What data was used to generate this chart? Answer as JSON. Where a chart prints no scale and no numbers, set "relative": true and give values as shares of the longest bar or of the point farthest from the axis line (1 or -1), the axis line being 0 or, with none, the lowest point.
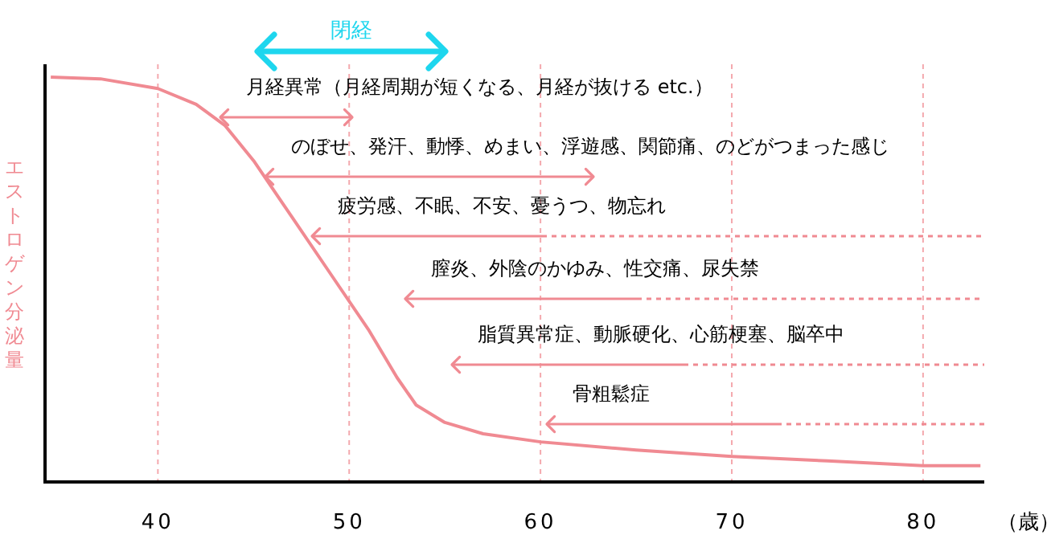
{
  "chart_data": {
    "type": "line",
    "relative": true,
    "ylabel": "エストロゲン分泌量",
    "xlabel": "（歳）",
    "xlim": [
      34.1,
      83.2
    ],
    "xticks": [
      40,
      50,
      60,
      70,
      80
    ],
    "grid": "x",
    "line_style": "solid",
    "series": [
      {
        "color": "#f08a92",
        "x": [
          34.4,
          37,
          40,
          42,
          43.5,
          45,
          47,
          49,
          51,
          52.5,
          53.5,
          55,
          57,
          60,
          65,
          70,
          75,
          80,
          83
        ],
        "values": [
          1.0,
          0.996,
          0.972,
          0.933,
          0.881,
          0.794,
          0.655,
          0.516,
          0.377,
          0.258,
          0.19,
          0.147,
          0.119,
          0.099,
          0.079,
          0.063,
          0.052,
          0.04,
          0.04
        ]
      }
    ],
    "annotations": [
      "閉経",
      "月経異常（月経周期が短くなる、月経が抜ける etc.）",
      "のぼせ、発汗、動悸、めまい、浮遊感、関節痛、のどがつまった感じ",
      "疲労感、不眠、不安、憂うつ、物忘れ",
      "膣炎、外陰のかゆみ、性交痛、尿失禁",
      "脂質異常症、動脈硬化、心筋梗塞、脳卒中",
      "骨粗鬆症"
    ]
  }
}
